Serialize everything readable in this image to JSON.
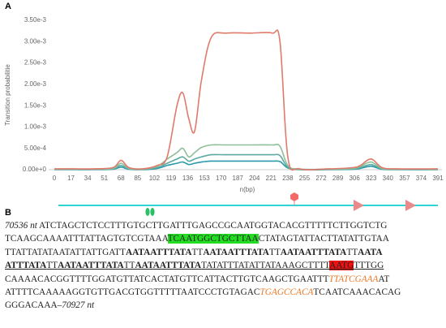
{
  "panel_labels": [
    "A",
    "B"
  ],
  "chart_data": {
    "type": "line",
    "y_label": "Transition probabilitie",
    "x_label": "n(bp)",
    "xlim": [
      0,
      391
    ],
    "xticks": [
      0,
      17,
      34,
      51,
      68,
      85,
      102,
      119,
      136,
      153,
      170,
      187,
      204,
      221,
      238,
      255,
      272,
      289,
      306,
      323,
      340,
      357,
      374,
      391
    ],
    "ylim": [
      0,
      0.0035
    ],
    "yticks": [
      {
        "value": 0,
        "label": "0.00e+0"
      },
      {
        "value": 0.0005,
        "label": "5.00e-4"
      },
      {
        "value": 0.001,
        "label": "1.00e-3"
      },
      {
        "value": 0.0015,
        "label": "1.50e-3"
      },
      {
        "value": 0.002,
        "label": "2.00e-3"
      },
      {
        "value": 0.0025,
        "label": "2.50e-3"
      },
      {
        "value": 0.003,
        "label": "3.00e-3"
      },
      {
        "value": 0.0035,
        "label": "3.50e-3"
      }
    ],
    "grid": false,
    "x": [
      0,
      20,
      40,
      60,
      68,
      76,
      90,
      105,
      115,
      125,
      131,
      137,
      143,
      150,
      160,
      175,
      200,
      222,
      230,
      238,
      250,
      280,
      305,
      312,
      323,
      334,
      350,
      391
    ],
    "series": [
      {
        "color": "#e07a6a",
        "values": [
          2e-05,
          2e-05,
          2e-05,
          5e-05,
          0.00022,
          5e-05,
          2e-05,
          0.0001,
          0.0003,
          0.0015,
          0.0018,
          0.0012,
          0.0009,
          0.0021,
          0.0031,
          0.0032,
          0.0032,
          0.0032,
          0.003,
          0.0003,
          2e-05,
          2e-05,
          5e-05,
          0.0001,
          0.00025,
          5e-05,
          2e-05,
          2e-05
        ]
      },
      {
        "color": "#8dbf9a",
        "values": [
          1e-05,
          1e-05,
          1e-05,
          3e-05,
          0.00015,
          3e-05,
          1e-05,
          8e-05,
          0.00025,
          0.0004,
          0.0005,
          0.0003,
          0.0004,
          0.00052,
          0.00058,
          0.00058,
          0.00058,
          0.00058,
          0.00055,
          0.0001,
          1e-05,
          1e-05,
          3e-05,
          8e-05,
          0.00018,
          3e-05,
          1e-05,
          1e-05
        ]
      },
      {
        "color": "#5aa9a3",
        "values": [
          1e-05,
          1e-05,
          1e-05,
          2e-05,
          0.0001,
          2e-05,
          1e-05,
          5e-05,
          0.00015,
          0.00025,
          0.0003,
          0.0002,
          0.00025,
          0.0003,
          0.00035,
          0.00035,
          0.00035,
          0.00035,
          0.00033,
          6e-05,
          1e-05,
          1e-05,
          2e-05,
          5e-05,
          0.00012,
          2e-05,
          1e-05,
          1e-05
        ]
      },
      {
        "color": "#2a9aaa",
        "values": [
          0,
          0,
          0,
          1e-05,
          6e-05,
          1e-05,
          0,
          3e-05,
          0.0001,
          0.00015,
          0.00018,
          0.00012,
          0.00015,
          0.00018,
          0.0002,
          0.0002,
          0.0002,
          0.0002,
          0.00019,
          4e-05,
          0,
          0,
          1e-05,
          3e-05,
          8e-05,
          1e-05,
          0,
          0
        ]
      }
    ]
  },
  "sequence": {
    "lines": [
      [
        {
          "text": "70536 nt",
          "style": "italic"
        },
        {
          "text": " ATCTAGCTCTCCTTTGTGCTTGATTTGAGCCGCAATGGTACACGTTTTTCTTGGTCTG",
          "style": "plain"
        }
      ],
      [
        {
          "text": "TCAAGCAAAATTTATTAGTGTCGTAAA",
          "style": "plain"
        },
        {
          "text": "TCAATGGCTGCTTAA",
          "style": "green"
        },
        {
          "text": "CTATAGTATTACTTATATTGTAA",
          "style": "plain"
        }
      ],
      [
        {
          "text": "TTATTATATAATATTATTGATT",
          "style": "plain"
        },
        {
          "text": "AATAATTTATA",
          "style": "bold"
        },
        {
          "text": "TT",
          "style": "plain"
        },
        {
          "text": "AATAATTTATA",
          "style": "bold"
        },
        {
          "text": "TT",
          "style": "plain"
        },
        {
          "text": "AATAATTTATA",
          "style": "bold"
        },
        {
          "text": "TT",
          "style": "plain"
        },
        {
          "text": "AATA",
          "style": "bold"
        }
      ],
      [
        {
          "text": "ATTTATA",
          "style": "bold"
        },
        {
          "text": "TT",
          "style": "plain"
        },
        {
          "text": "AATAATTTATA",
          "style": "bold"
        },
        {
          "text": "TT",
          "style": "plain"
        },
        {
          "text": "AATAATTTATA",
          "style": "bold"
        },
        {
          "text": "TATATTTATATTATAAAGCTTTT",
          "style": "plain"
        },
        {
          "text": "AATG",
          "style": "red"
        },
        {
          "text": "TTTGG",
          "style": "plain"
        }
      ],
      [
        {
          "text": "CAAAACACGGTTTTGGATGTTATCACTATGTTCATTACTTGTCAAGCTGAATTT",
          "style": "plain"
        },
        {
          "text": "TTATCGAAA",
          "style": "orange"
        },
        {
          "text": "AT",
          "style": "plain"
        }
      ],
      [
        {
          "text": "ATTTTCAAAAAGGTGTTGACGTGGTTTTTAATCCCTGTAGAC",
          "style": "plain"
        },
        {
          "text": "TGAGCCACA",
          "style": "orange"
        },
        {
          "text": "TCAATCAAACACAG",
          "style": "plain"
        }
      ],
      [
        {
          "text": "GGGACAAA–",
          "style": "plain"
        },
        {
          "text": "70927 nt",
          "style": "italic"
        }
      ]
    ]
  }
}
